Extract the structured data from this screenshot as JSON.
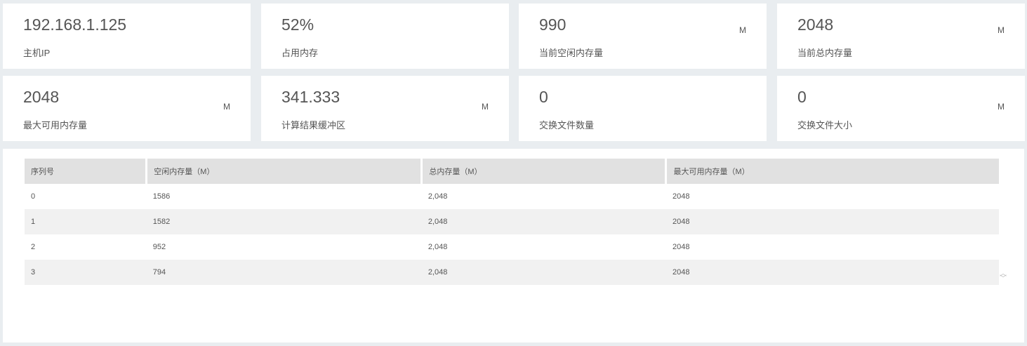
{
  "cards": [
    {
      "value": "192.168.1.125",
      "label": "主机IP",
      "unit": ""
    },
    {
      "value": "52%",
      "label": "占用内存",
      "unit": ""
    },
    {
      "value": "990",
      "label": "当前空闲内存量",
      "unit": "M"
    },
    {
      "value": "2048",
      "label": "当前总内存量",
      "unit": "M"
    },
    {
      "value": "2048",
      "label": "最大可用内存量",
      "unit": "M"
    },
    {
      "value": "341.333",
      "label": "计算结果缓冲区",
      "unit": "M"
    },
    {
      "value": "0",
      "label": "交换文件数量",
      "unit": ""
    },
    {
      "value": "0",
      "label": "交换文件大小",
      "unit": "M"
    }
  ],
  "table": {
    "headers": [
      "序列号",
      "空闲内存量（M）",
      "总内存量（M）",
      "最大可用内存量（M）"
    ],
    "rows": [
      [
        "0",
        "1586",
        "2,048",
        "2048"
      ],
      [
        "1",
        "1582",
        "2,048",
        "2048"
      ],
      [
        "2",
        "952",
        "2,048",
        "2048"
      ],
      [
        "3",
        "794",
        "2,048",
        "2048"
      ]
    ]
  },
  "scroll_icon": "sort-arrows-icon"
}
